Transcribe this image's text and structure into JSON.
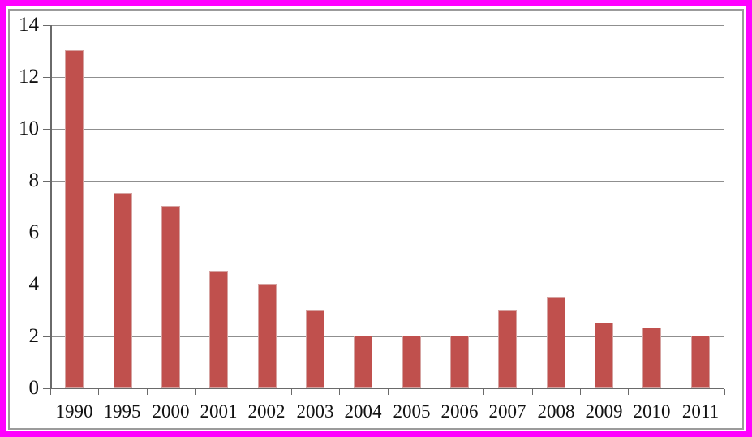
{
  "chart_data": {
    "type": "bar",
    "title": "",
    "xlabel": "",
    "ylabel": "",
    "categories": [
      "1990",
      "1995",
      "2000",
      "2001",
      "2002",
      "2003",
      "2004",
      "2005",
      "2006",
      "2007",
      "2008",
      "2009",
      "2010",
      "2011"
    ],
    "values": [
      13,
      7.5,
      7,
      4.5,
      4,
      3,
      2,
      2,
      2,
      3,
      3.5,
      2.5,
      2.3,
      2
    ],
    "ylim": [
      0,
      14
    ],
    "yticks": [
      0,
      2,
      4,
      6,
      8,
      10,
      12,
      14
    ],
    "grid": true,
    "legend": false,
    "bar_color": "#c0504d",
    "bar_edge_color": "#d6a3a1"
  },
  "colors": {
    "outer_frame": "#ff00ff",
    "chart_background": "#ffffff",
    "chart_border": "#9b9b9b",
    "gridline": "#8f8f8f",
    "axis": "#6a6a6a",
    "text": "#121212"
  }
}
